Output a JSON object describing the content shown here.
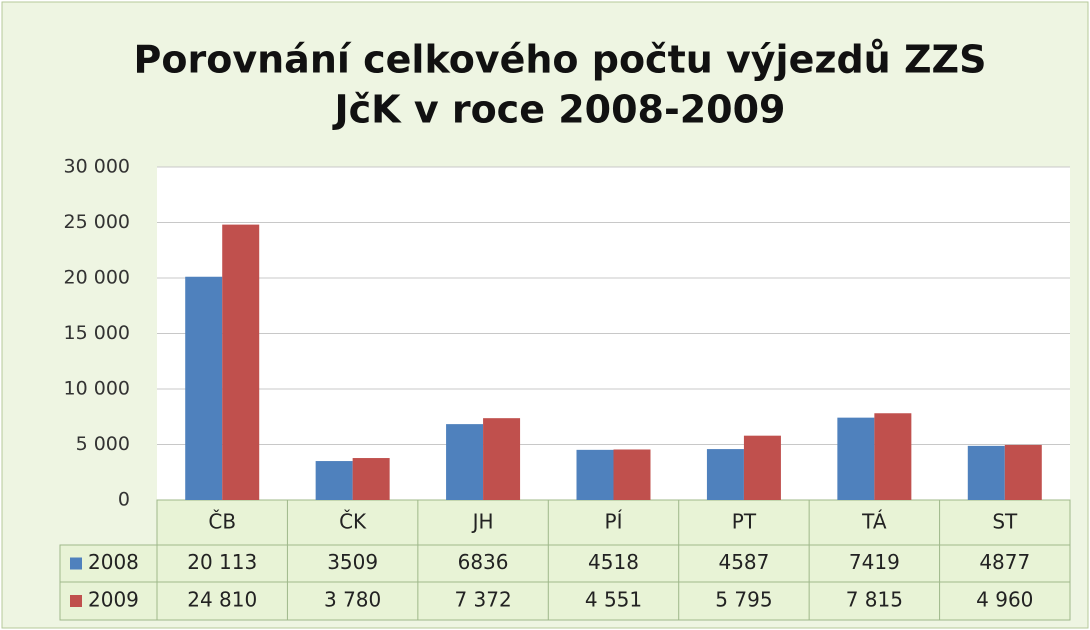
{
  "chart_data": {
    "type": "bar",
    "title": [
      "Porovnání celkového počtu výjezdů ZZS",
      "JčK v roce 2008-2009"
    ],
    "categories": [
      "ČB",
      "ČK",
      "JH",
      "PÍ",
      "PT",
      "TÁ",
      "ST"
    ],
    "series": [
      {
        "name": "2008",
        "color": "#4f81bd",
        "values": [
          20113,
          3509,
          6836,
          4518,
          4587,
          7419,
          4877
        ],
        "value_labels": [
          "20 113",
          "3509",
          "6836",
          "4518",
          "4587",
          "7419",
          "4877"
        ]
      },
      {
        "name": "2009",
        "color": "#c0504d",
        "values": [
          24810,
          3780,
          7372,
          4551,
          5795,
          7815,
          4960
        ],
        "value_labels": [
          "24 810",
          "3 780",
          "7 372",
          "4 551",
          "5 795",
          "7 815",
          "4 960"
        ]
      }
    ],
    "ylim": [
      0,
      30000
    ],
    "yticks": [
      0,
      {
        "value": 5000,
        "label": "5 000"
      },
      {
        "value": 10000,
        "label": "10 000"
      },
      {
        "value": 15000,
        "label": "15 000"
      },
      {
        "value": 20000,
        "label": "20 000"
      },
      {
        "value": 25000,
        "label": "25 000"
      },
      {
        "value": 30000,
        "label": "30 000"
      }
    ],
    "grid": true
  }
}
